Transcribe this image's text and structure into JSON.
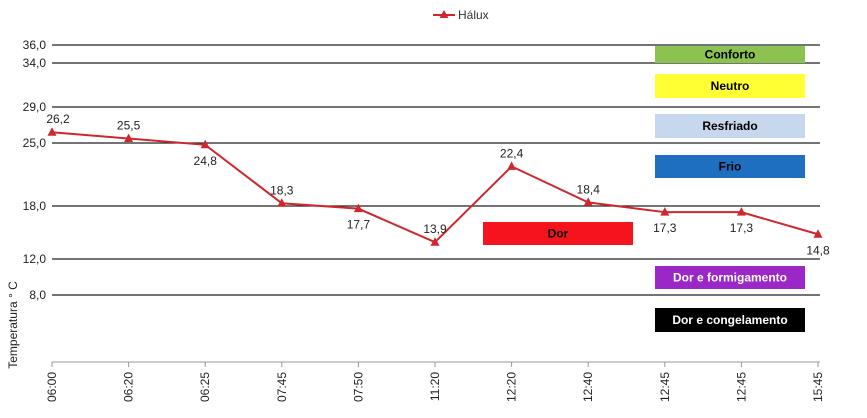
{
  "chart_data": {
    "type": "line",
    "title": "",
    "xlabel": "",
    "ylabel": "Temperatura ° C",
    "categories": [
      "06:00",
      "06:20",
      "06:25",
      "07:45",
      "07:50",
      "11:20",
      "12:20",
      "12:40",
      "12:45",
      "12:45",
      "15:45"
    ],
    "series": [
      {
        "name": "Hálux",
        "color": "#d0262e",
        "values": [
          26.2,
          25.5,
          24.8,
          18.3,
          17.7,
          13.9,
          22.4,
          18.4,
          17.3,
          17.3,
          14.8
        ],
        "labels": [
          "26,2",
          "25,5",
          "24,8",
          "18,3",
          "17,7",
          "13,9",
          "22,4",
          "18,4",
          "17,3",
          "17,3",
          "14,8"
        ]
      }
    ],
    "y_ticks": [
      {
        "value": 36.0,
        "label": "36,0"
      },
      {
        "value": 34.0,
        "label": "34,0"
      },
      {
        "value": 29.0,
        "label": "29,0"
      },
      {
        "value": 25.0,
        "label": "25,0"
      },
      {
        "value": 18.0,
        "label": "18,0"
      },
      {
        "value": 12.0,
        "label": "12,0"
      },
      {
        "value": 8.0,
        "label": "8,0"
      }
    ],
    "grid": true,
    "legend": "top-center",
    "zones": [
      {
        "label": "Conforto",
        "color": "#8cc24f",
        "text_color": "#000000"
      },
      {
        "label": "Neutro",
        "color": "#ffff33",
        "text_color": "#000000"
      },
      {
        "label": "Resfriado",
        "color": "#c7d8ee",
        "text_color": "#000000"
      },
      {
        "label": "Frio",
        "color": "#1f6fc0",
        "text_color": "#000000"
      },
      {
        "label": "Dor",
        "color": "#f5141e",
        "text_color": "#000000"
      },
      {
        "label": "Dor e formigamento",
        "color": "#9b27c7",
        "text_color": "#ffffff"
      },
      {
        "label": "Dor e congelamento",
        "color": "#000000",
        "text_color": "#ffffff"
      }
    ]
  }
}
